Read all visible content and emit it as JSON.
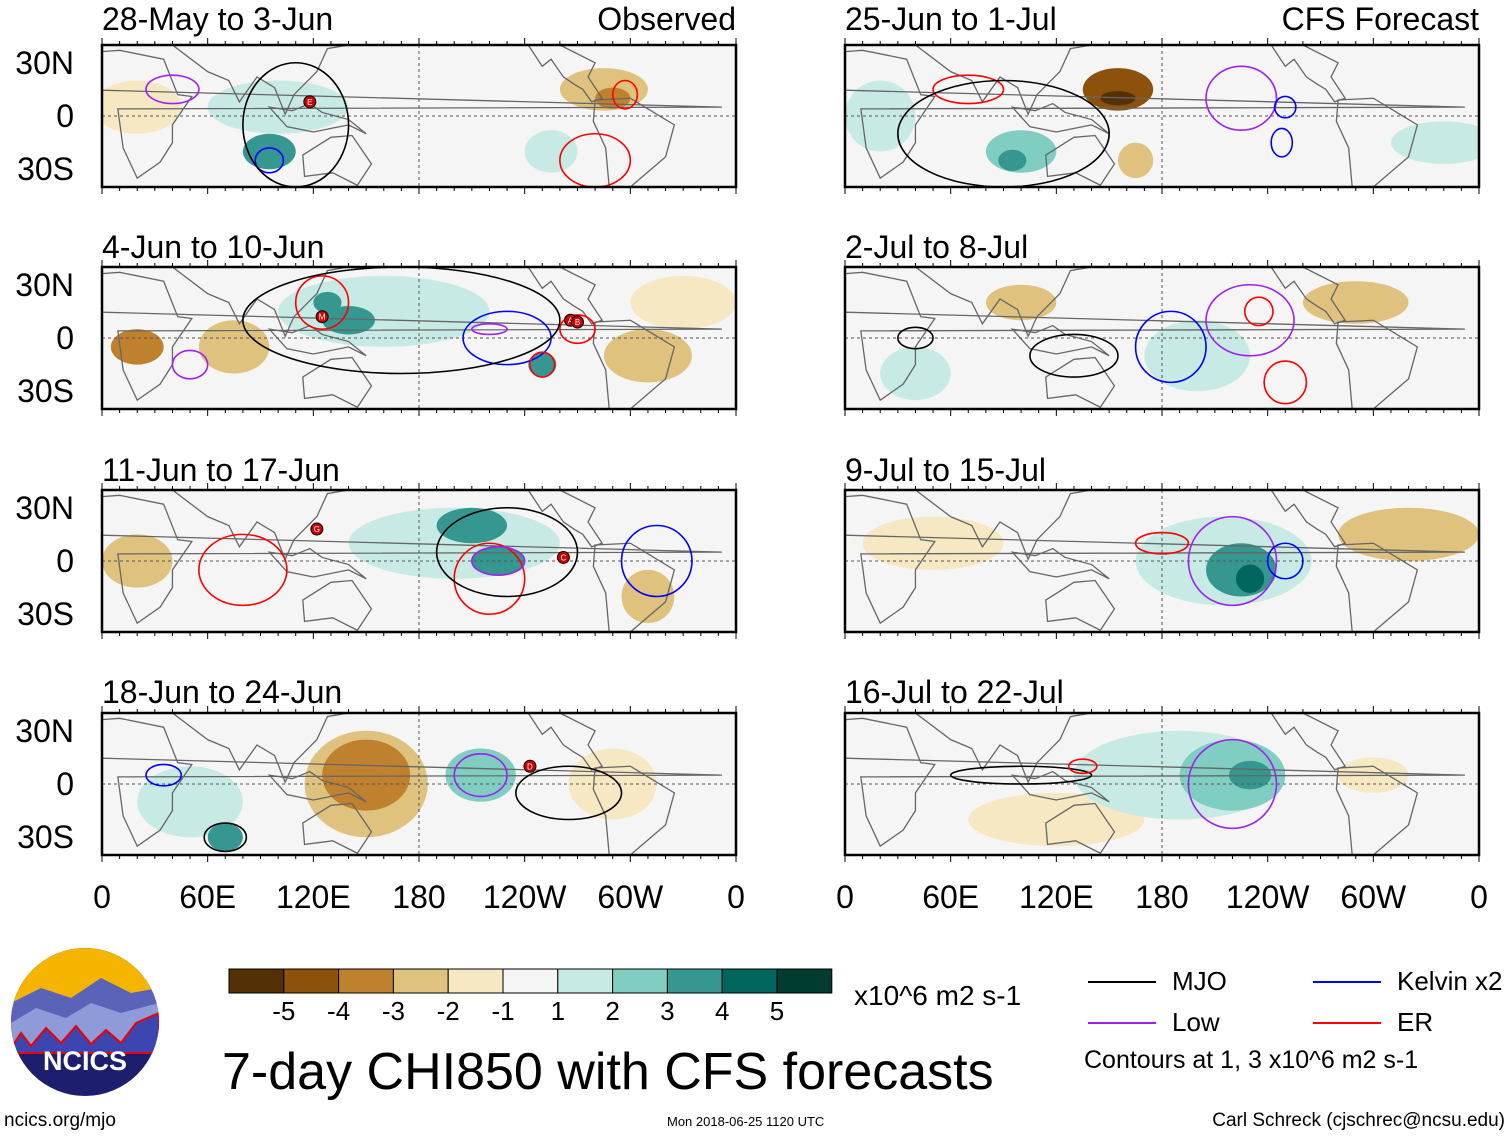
{
  "panel_labels": {
    "observed": "Observed",
    "forecast": "CFS Forecast"
  },
  "lat_labels": [
    "30N",
    "0",
    "30S"
  ],
  "lon_labels": [
    "0",
    "60E",
    "120E",
    "180",
    "120W",
    "60W",
    "0"
  ],
  "colorbar": {
    "colors": [
      "#543005",
      "#8c510a",
      "#bf812d",
      "#dfc27d",
      "#f6e8c3",
      "#f5f5f5",
      "#c7eae5",
      "#80cdc1",
      "#35978f",
      "#01665e",
      "#003c30"
    ],
    "ticks": [
      "-5",
      "-4",
      "-3",
      "-2",
      "-1",
      "1",
      "2",
      "3",
      "4",
      "5"
    ],
    "units": "x10^6 m2 s-1"
  },
  "legend": {
    "items": [
      {
        "label": "MJO",
        "color": "#000000"
      },
      {
        "label": "Kelvin x2",
        "color": "#0000ff"
      },
      {
        "label": "Low",
        "color": "#a020f0"
      },
      {
        "label": "ER",
        "color": "#ff0000"
      }
    ],
    "note": "Contours at 1, 3 x10^6 m2 s-1"
  },
  "title": "7-day CHI850 with CFS forecasts",
  "logo": {
    "text": "NCICS"
  },
  "footer": {
    "left": "ncics.org/mjo",
    "center": "Mon 2018-06-25 1120 UTC",
    "right": "Carl Schreck (cjschrec@ncsu.edu)"
  },
  "chart_data": {
    "type": "heatmap",
    "title": "7-day CHI850 with CFS forecasts",
    "units": "x10^6 m2 s-1",
    "lon_range": [
      0,
      360
    ],
    "lat_range": [
      -40,
      40
    ],
    "panels": [
      {
        "title": "28-May to 3-Jun",
        "kind": "Observed",
        "shading": [
          [
            20,
            5,
            25,
            15,
            -1
          ],
          [
            100,
            5,
            40,
            15,
            1
          ],
          [
            95,
            -20,
            15,
            10,
            3
          ],
          [
            285,
            15,
            25,
            12,
            -2
          ],
          [
            290,
            10,
            10,
            6,
            -3
          ],
          [
            255,
            -20,
            15,
            12,
            1
          ]
        ],
        "contours": [
          [
            "kelvin",
            95,
            -25,
            8,
            7
          ],
          [
            "er",
            280,
            -25,
            20,
            15
          ],
          [
            "er",
            297,
            12,
            7,
            8
          ],
          [
            "low",
            40,
            15,
            15,
            8
          ],
          [
            "mjo",
            110,
            -5,
            30,
            35
          ]
        ],
        "cyclones": [
          [
            "E",
            118,
            8
          ]
        ]
      },
      {
        "title": "4-Jun to 10-Jun",
        "kind": "Observed",
        "shading": [
          [
            160,
            15,
            60,
            20,
            1
          ],
          [
            140,
            10,
            15,
            8,
            3
          ],
          [
            128,
            20,
            8,
            6,
            3
          ],
          [
            20,
            -5,
            15,
            10,
            -3
          ],
          [
            310,
            -10,
            25,
            15,
            -2
          ],
          [
            330,
            20,
            30,
            15,
            -1
          ],
          [
            250,
            -15,
            8,
            7,
            3
          ],
          [
            75,
            -5,
            20,
            15,
            -2
          ]
        ],
        "contours": [
          [
            "kelvin",
            230,
            0,
            25,
            15
          ],
          [
            "er",
            125,
            20,
            15,
            15
          ],
          [
            "low",
            50,
            -15,
            10,
            8
          ],
          [
            "low",
            220,
            5,
            10,
            3
          ],
          [
            "er",
            250,
            -15,
            7,
            7
          ],
          [
            "er",
            270,
            5,
            10,
            8
          ],
          [
            "mjo",
            170,
            10,
            90,
            30
          ]
        ],
        "cyclones": [
          [
            "M",
            125,
            12
          ],
          [
            "A",
            266,
            10
          ],
          [
            "B",
            270,
            9
          ]
        ]
      },
      {
        "title": "11-Jun to 17-Jun",
        "kind": "Observed",
        "shading": [
          [
            200,
            10,
            60,
            20,
            1
          ],
          [
            210,
            20,
            20,
            10,
            3
          ],
          [
            225,
            0,
            15,
            8,
            3
          ],
          [
            20,
            0,
            20,
            15,
            -2
          ],
          [
            310,
            -20,
            15,
            15,
            -2
          ]
        ],
        "contours": [
          [
            "kelvin",
            315,
            0,
            20,
            20
          ],
          [
            "er",
            220,
            -10,
            20,
            20
          ],
          [
            "er",
            80,
            -5,
            25,
            20
          ],
          [
            "low",
            225,
            0,
            15,
            8
          ],
          [
            "mjo",
            230,
            5,
            40,
            25
          ]
        ],
        "cyclones": [
          [
            "G",
            122,
            18
          ],
          [
            "C",
            262,
            2
          ]
        ]
      },
      {
        "title": "18-Jun to 24-Jun",
        "kind": "Observed",
        "shading": [
          [
            150,
            0,
            35,
            30,
            -2
          ],
          [
            150,
            5,
            25,
            20,
            -3
          ],
          [
            50,
            -10,
            30,
            20,
            1
          ],
          [
            70,
            -30,
            10,
            8,
            3
          ],
          [
            215,
            5,
            20,
            15,
            2
          ],
          [
            290,
            0,
            25,
            20,
            -1
          ]
        ],
        "contours": [
          [
            "low",
            215,
            5,
            15,
            12
          ],
          [
            "kelvin",
            35,
            5,
            10,
            6
          ],
          [
            "mjo",
            70,
            -30,
            12,
            8
          ],
          [
            "mjo",
            265,
            -5,
            30,
            15
          ]
        ],
        "cyclones": [
          [
            "D",
            243,
            10
          ]
        ]
      },
      {
        "title": "25-Jun to 1-Jul",
        "kind": "CFS Forecast",
        "shading": [
          [
            20,
            0,
            20,
            20,
            1
          ],
          [
            155,
            15,
            20,
            12,
            -4
          ],
          [
            155,
            10,
            10,
            4,
            -5
          ],
          [
            100,
            -20,
            20,
            12,
            2
          ],
          [
            95,
            -25,
            8,
            6,
            3
          ],
          [
            165,
            -25,
            10,
            10,
            -2
          ],
          [
            340,
            -15,
            30,
            12,
            1
          ]
        ],
        "contours": [
          [
            "low",
            225,
            10,
            20,
            18
          ],
          [
            "kelvin",
            248,
            -15,
            6,
            8
          ],
          [
            "kelvin",
            250,
            5,
            6,
            6
          ],
          [
            "er",
            70,
            15,
            20,
            8
          ],
          [
            "mjo",
            90,
            -10,
            60,
            30
          ]
        ],
        "cyclones": []
      },
      {
        "title": "2-Jul to 8-Jul",
        "kind": "CFS Forecast",
        "shading": [
          [
            100,
            20,
            20,
            10,
            -2
          ],
          [
            290,
            20,
            30,
            12,
            -2
          ],
          [
            200,
            -10,
            30,
            20,
            1
          ],
          [
            40,
            -20,
            20,
            15,
            1
          ]
        ],
        "contours": [
          [
            "kelvin",
            185,
            -5,
            20,
            20
          ],
          [
            "low",
            230,
            10,
            25,
            20
          ],
          [
            "er",
            235,
            15,
            8,
            8
          ],
          [
            "er",
            250,
            -25,
            12,
            12
          ],
          [
            "mjo",
            40,
            0,
            10,
            6
          ],
          [
            "mjo",
            130,
            -10,
            25,
            12
          ]
        ],
        "cyclones": []
      },
      {
        "title": "9-Jul to 15-Jul",
        "kind": "CFS Forecast",
        "shading": [
          [
            50,
            10,
            40,
            15,
            -1
          ],
          [
            320,
            15,
            40,
            15,
            -2
          ],
          [
            215,
            0,
            50,
            25,
            1
          ],
          [
            225,
            -5,
            20,
            15,
            3
          ],
          [
            230,
            -10,
            8,
            8,
            4
          ]
        ],
        "contours": [
          [
            "low",
            220,
            0,
            25,
            25
          ],
          [
            "kelvin",
            250,
            0,
            10,
            10
          ],
          [
            "er",
            180,
            10,
            15,
            6
          ]
        ],
        "cyclones": []
      },
      {
        "title": "16-Jul to 22-Jul",
        "kind": "CFS Forecast",
        "shading": [
          [
            120,
            -20,
            50,
            15,
            -1
          ],
          [
            300,
            5,
            20,
            10,
            -1
          ],
          [
            190,
            5,
            60,
            25,
            1
          ],
          [
            220,
            5,
            30,
            20,
            2
          ],
          [
            230,
            5,
            12,
            8,
            3
          ]
        ],
        "contours": [
          [
            "low",
            220,
            0,
            25,
            25
          ],
          [
            "mjo",
            100,
            5,
            40,
            5
          ],
          [
            "er",
            135,
            10,
            8,
            4
          ]
        ],
        "cyclones": []
      }
    ]
  }
}
